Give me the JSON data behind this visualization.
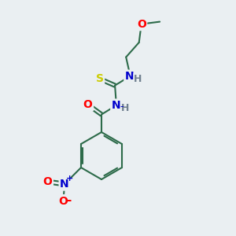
{
  "background_color": "#eaeff2",
  "bond_color": "#2d6b4a",
  "atom_colors": {
    "O": "#ff0000",
    "N": "#0000cc",
    "S": "#cccc00",
    "H": "#708090",
    "C": "#2d6b4a"
  },
  "font_size_atoms": 10,
  "font_size_H": 9,
  "font_size_charge": 9
}
